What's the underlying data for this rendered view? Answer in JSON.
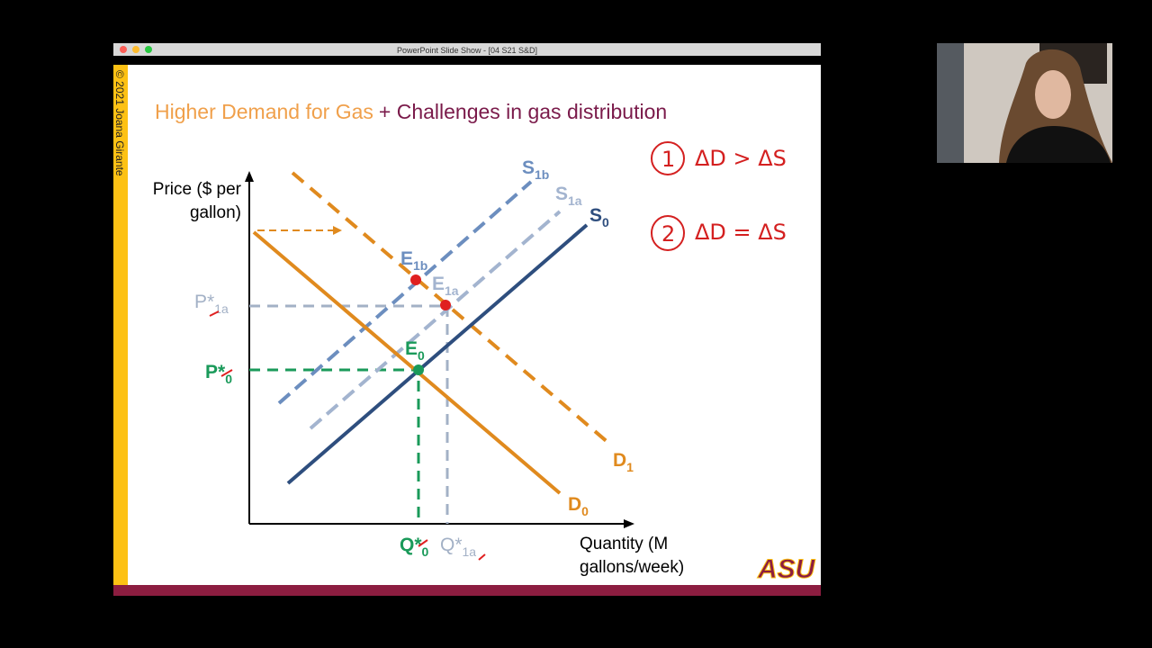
{
  "window": {
    "title": "PowerPoint Slide Show - [04 S21 S&D]"
  },
  "slide": {
    "copyright": "© 2021 Joana Girante",
    "title": {
      "demand_part": "Higher Demand for Gas",
      "supply_part": "+ Challenges in gas distribution"
    },
    "y_axis_label": [
      "Price ($ per",
      "gallon)"
    ],
    "x_axis_label": [
      "Quantity (M",
      "gallons/week)"
    ],
    "curves": {
      "s1b": {
        "base": "S",
        "sub": "1b"
      },
      "s1a": {
        "base": "S",
        "sub": "1a"
      },
      "s0": {
        "base": "S",
        "sub": "0"
      },
      "d1": {
        "base": "D",
        "sub": "1"
      },
      "d0": {
        "base": "D",
        "sub": "0"
      }
    },
    "points": {
      "e1b": {
        "base": "E",
        "sub": "1b"
      },
      "e1a": {
        "base": "E",
        "sub": "1a"
      },
      "e0": {
        "base": "E",
        "sub": "0"
      }
    },
    "axis_marks": {
      "p1a": {
        "base": "P*",
        "sub": "1a"
      },
      "p0": {
        "base": "P*",
        "sub": "0"
      },
      "q0": {
        "base": "Q*",
        "sub": "0"
      },
      "q1a": {
        "base": "Q*",
        "sub": "1a"
      }
    },
    "annotations": [
      {
        "number": "1",
        "text": "ΔD > ΔS"
      },
      {
        "number": "2",
        "text": "ΔD = ΔS"
      }
    ],
    "logo": "ASU"
  }
}
